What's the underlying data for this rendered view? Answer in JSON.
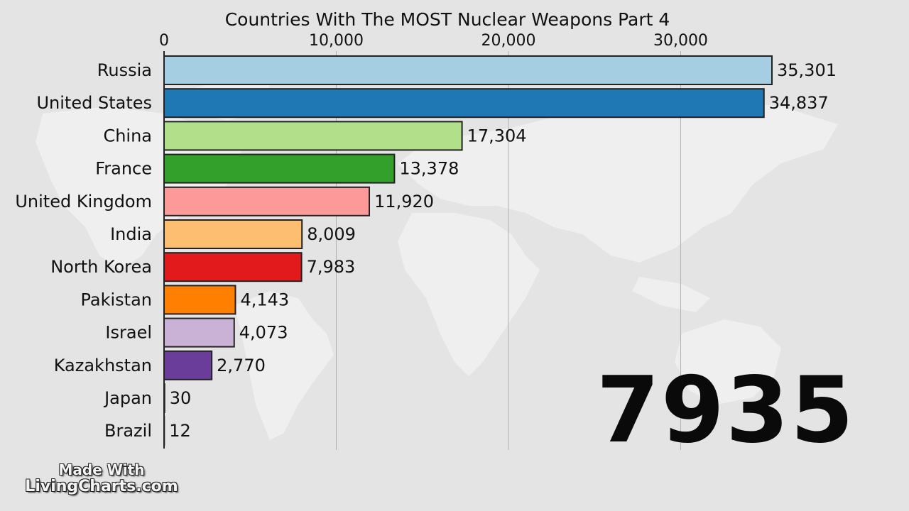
{
  "chart_data": {
    "type": "bar",
    "orientation": "horizontal",
    "title": "Countries With The MOST Nuclear Weapons Part 4",
    "year": "7935",
    "xlim": [
      0,
      35301
    ],
    "x_ticks": [
      {
        "value": 0,
        "label": "0"
      },
      {
        "value": 10000,
        "label": "10,000"
      },
      {
        "value": 20000,
        "label": "20,000"
      },
      {
        "value": 30000,
        "label": "30,000"
      }
    ],
    "grid": true,
    "categories": [
      "Russia",
      "United States",
      "China",
      "France",
      "United Kingdom",
      "India",
      "North Korea",
      "Pakistan",
      "Israel",
      "Kazakhstan",
      "Japan",
      "Brazil"
    ],
    "values": [
      35301,
      34837,
      17304,
      13378,
      11920,
      8009,
      7983,
      4143,
      4073,
      2770,
      30,
      12
    ],
    "value_labels": [
      "35,301",
      "34,837",
      "17,304",
      "13,378",
      "11,920",
      "8,009",
      "7,983",
      "4,143",
      "4,073",
      "2,770",
      "30",
      "12"
    ],
    "colors": [
      "#a6cee3",
      "#1f78b4",
      "#b2df8a",
      "#33a02c",
      "#fb9a99",
      "#fdbf6f",
      "#e31a1c",
      "#ff7f00",
      "#cab2d6",
      "#6a3d9a",
      "#222222",
      "#222222"
    ]
  },
  "watermark": {
    "line1": "Made With",
    "line2": "LivingCharts.com"
  }
}
